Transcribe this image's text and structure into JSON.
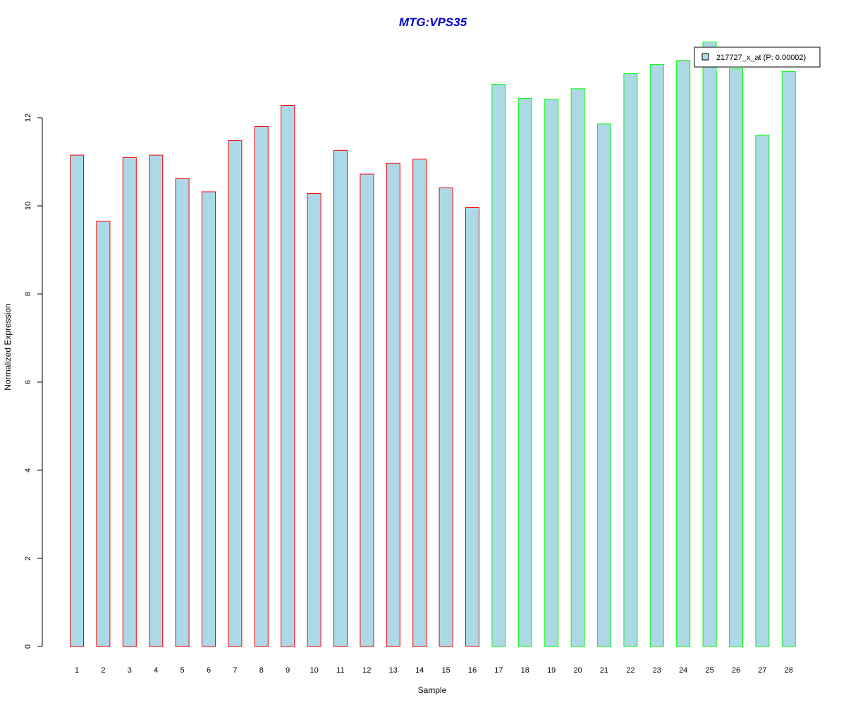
{
  "chart_data": {
    "type": "bar",
    "title": "MTG:VPS35",
    "xlabel": "Sample",
    "ylabel": "Normalized Expression",
    "categories": [
      "1",
      "2",
      "3",
      "4",
      "5",
      "6",
      "7",
      "8",
      "9",
      "10",
      "11",
      "12",
      "13",
      "14",
      "15",
      "16",
      "17",
      "18",
      "19",
      "20",
      "21",
      "22",
      "23",
      "24",
      "25",
      "26",
      "27",
      "28"
    ],
    "series": [
      {
        "name": "217727_x_at (P: 0.00002)",
        "values": [
          11.15,
          9.65,
          11.1,
          11.15,
          10.62,
          10.32,
          11.48,
          11.8,
          12.28,
          10.28,
          11.26,
          10.72,
          10.97,
          11.06,
          10.41,
          9.96,
          12.76,
          12.44,
          12.42,
          12.66,
          11.86,
          13.0,
          13.21,
          13.3,
          13.72,
          13.11,
          11.6,
          13.05
        ]
      }
    ],
    "group_borders": [
      "#ff0000",
      "#ff0000",
      "#ff0000",
      "#ff0000",
      "#ff0000",
      "#ff0000",
      "#ff0000",
      "#ff0000",
      "#ff0000",
      "#ff0000",
      "#ff0000",
      "#ff0000",
      "#ff0000",
      "#ff0000",
      "#ff0000",
      "#ff0000",
      "#00ff00",
      "#00ff00",
      "#00ff00",
      "#00ff00",
      "#00ff00",
      "#00ff00",
      "#00ff00",
      "#00ff00",
      "#00ff00",
      "#00ff00",
      "#00ff00",
      "#00ff00"
    ],
    "y_ticks": [
      0,
      2,
      4,
      6,
      8,
      10,
      12
    ],
    "ylim": [
      0,
      13.72
    ],
    "legend_position": "top-right",
    "grid": false,
    "colors": {
      "bar_fill": "#add8e6",
      "title": "#0000cd"
    }
  }
}
